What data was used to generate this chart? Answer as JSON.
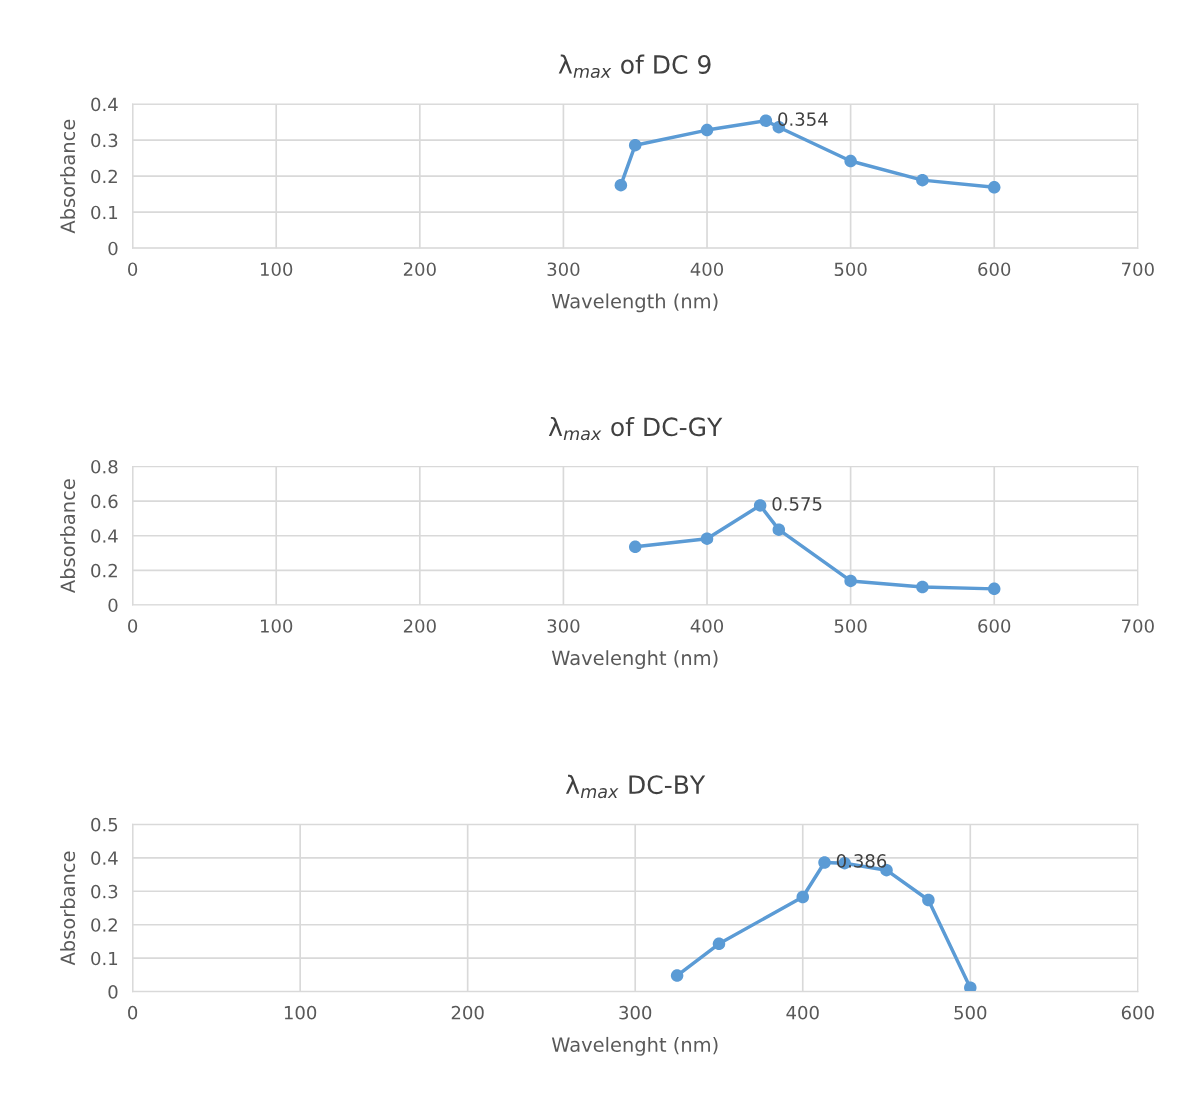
{
  "chart_data": [
    {
      "type": "line",
      "title": "λ$_{max}$ of DC 9",
      "xlabel": "Wavelength (nm)",
      "ylabel": "Absorbance",
      "x": [
        340,
        350,
        400,
        441,
        450,
        500,
        550,
        600
      ],
      "series": [
        {
          "color": "#5b9bd5",
          "values": [
            0.175,
            0.286,
            0.328,
            0.354,
            0.336,
            0.242,
            0.189,
            0.169
          ],
          "value_labels": [
            null,
            null,
            null,
            "0.354",
            null,
            null,
            null,
            null
          ]
        }
      ],
      "xlim": [
        0,
        700
      ],
      "xticks": [
        0,
        100,
        200,
        300,
        400,
        500,
        600,
        700
      ],
      "ylim": [
        0,
        0.4
      ],
      "yticks": [
        0,
        0.1,
        0.2,
        0.3,
        0.4
      ],
      "grid": true,
      "marker": "circle",
      "line_style": "solid"
    },
    {
      "type": "line",
      "title": "λ$_{max}$ of DC-GY",
      "xlabel": "Wavelenght (nm)",
      "ylabel": "Absorbance",
      "x": [
        350,
        400,
        437,
        450,
        500,
        550,
        600
      ],
      "series": [
        {
          "color": "#5b9bd5",
          "values": [
            0.336,
            0.383,
            0.575,
            0.435,
            0.139,
            0.104,
            0.093
          ],
          "value_labels": [
            null,
            null,
            "0.575",
            null,
            null,
            null,
            null
          ]
        }
      ],
      "xlim": [
        0,
        700
      ],
      "xticks": [
        0,
        100,
        200,
        300,
        400,
        500,
        600,
        700
      ],
      "ylim": [
        0,
        0.8
      ],
      "yticks": [
        0,
        0.2,
        0.4,
        0.6,
        0.8
      ],
      "grid": true,
      "marker": "circle",
      "line_style": "solid"
    },
    {
      "type": "line",
      "title": "λ$_{max}$ DC-BY",
      "xlabel": "Wavelenght (nm)",
      "ylabel": "Absorbance",
      "x": [
        325,
        350,
        400,
        413,
        425,
        450,
        475,
        500
      ],
      "series": [
        {
          "color": "#5b9bd5",
          "values": [
            0.048,
            0.143,
            0.283,
            0.386,
            0.384,
            0.363,
            0.274,
            0.012
          ],
          "value_labels": [
            null,
            null,
            null,
            "0.386",
            null,
            null,
            null,
            null
          ]
        }
      ],
      "xlim": [
        0,
        600
      ],
      "xticks": [
        0,
        100,
        200,
        300,
        400,
        500,
        600
      ],
      "ylim": [
        0,
        0.5
      ],
      "yticks": [
        0,
        0.1,
        0.2,
        0.3,
        0.4,
        0.5
      ],
      "grid": true,
      "marker": "circle",
      "line_style": "solid"
    }
  ]
}
